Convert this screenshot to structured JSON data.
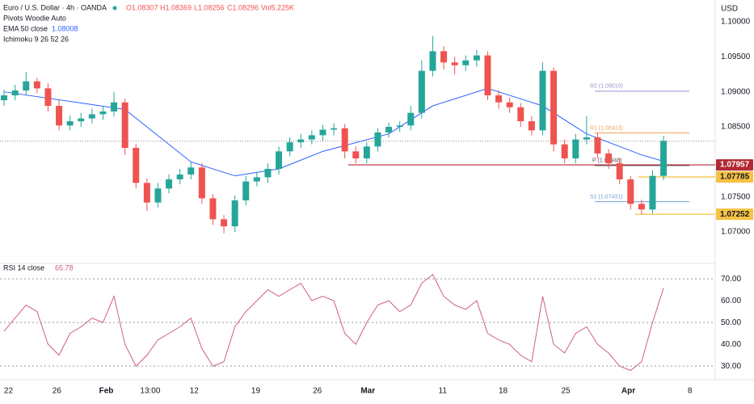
{
  "header": {
    "symbol": "Euro / U.S. Dollar · 4h · OANDA",
    "ohlcv": [
      "O1.08307",
      "H1.08369",
      "L1.08256",
      "C1.08296",
      "Vol5.225K"
    ],
    "pivots_label": "Pivots Woodie Auto",
    "ichimoku_label": "Ichimoku 9 26 52 26",
    "currency": "USD"
  },
  "chart_data": [
    {
      "type": "candlestick",
      "up_color": "#26a69a",
      "down_color": "#ef5350",
      "open": [
        1.0888,
        1.0895,
        1.0902,
        1.0915,
        1.0905,
        1.088,
        1.0852,
        1.0858,
        1.0862,
        1.0868,
        1.0872,
        1.0885,
        1.082,
        1.077,
        1.0742,
        1.0762,
        1.0775,
        1.0782,
        1.0792,
        1.0748,
        1.0718,
        1.0708,
        1.0745,
        1.0772,
        1.0778,
        1.079,
        1.0815,
        1.0828,
        1.0832,
        1.0838,
        1.0846,
        1.0848,
        1.0815,
        1.0805,
        1.0822,
        1.0842,
        1.085,
        1.0852,
        1.087,
        1.093,
        1.0958,
        1.0942,
        1.0938,
        1.0945,
        1.0952,
        1.0895,
        1.0885,
        1.0878,
        1.0858,
        1.0845,
        1.093,
        1.0825,
        1.0805,
        1.0832,
        1.0835,
        1.0812,
        1.0798,
        1.0775,
        1.074,
        1.0732,
        1.078
      ],
      "high": [
        1.0903,
        1.091,
        1.0928,
        1.092,
        1.0912,
        1.0888,
        1.0866,
        1.087,
        1.0876,
        1.088,
        1.09,
        1.089,
        1.0826,
        1.0776,
        1.077,
        1.0782,
        1.079,
        1.08,
        1.0798,
        1.0754,
        1.0724,
        1.0752,
        1.078,
        1.0786,
        1.0798,
        1.0822,
        1.0835,
        1.084,
        1.0845,
        1.0853,
        1.0855,
        1.0854,
        1.0822,
        1.0828,
        1.0848,
        1.0856,
        1.0858,
        1.088,
        1.0945,
        1.098,
        1.0965,
        1.095,
        1.0952,
        1.096,
        1.0958,
        1.0902,
        1.0892,
        1.0884,
        1.0865,
        1.0942,
        1.0935,
        1.0832,
        1.084,
        1.0865,
        1.0842,
        1.0818,
        1.0805,
        1.078,
        1.0746,
        1.0788,
        1.0837
      ],
      "low": [
        1.088,
        1.0888,
        1.0895,
        1.0898,
        1.0872,
        1.0845,
        1.0845,
        1.085,
        1.0855,
        1.086,
        1.0865,
        1.081,
        1.0762,
        1.073,
        1.0735,
        1.0755,
        1.0768,
        1.0775,
        1.074,
        1.071,
        1.0698,
        1.07,
        1.0738,
        1.0765,
        1.077,
        1.0782,
        1.0808,
        1.082,
        1.0825,
        1.083,
        1.0838,
        1.0805,
        1.0798,
        1.0798,
        1.0815,
        1.0835,
        1.0843,
        1.0845,
        1.0862,
        1.0922,
        1.0932,
        1.0925,
        1.093,
        1.0936,
        1.0888,
        1.0876,
        1.087,
        1.085,
        1.0838,
        1.0838,
        1.0815,
        1.0798,
        1.0798,
        1.0825,
        1.0805,
        1.079,
        1.0768,
        1.0732,
        1.0725,
        1.0726,
        1.0774
      ],
      "close": [
        1.0895,
        1.0902,
        1.0915,
        1.0905,
        1.088,
        1.0852,
        1.0858,
        1.0862,
        1.0868,
        1.0872,
        1.0885,
        1.082,
        1.077,
        1.0742,
        1.0762,
        1.0775,
        1.0782,
        1.0792,
        1.0748,
        1.0718,
        1.0708,
        1.0745,
        1.0772,
        1.0778,
        1.079,
        1.0815,
        1.0828,
        1.0832,
        1.0838,
        1.0846,
        1.0848,
        1.0815,
        1.0805,
        1.0822,
        1.0842,
        1.085,
        1.0852,
        1.087,
        1.093,
        1.0958,
        1.0942,
        1.0938,
        1.0945,
        1.0952,
        1.0895,
        1.0885,
        1.0878,
        1.0858,
        1.0845,
        1.093,
        1.0825,
        1.0805,
        1.0832,
        1.0835,
        1.0812,
        1.0798,
        1.0775,
        1.074,
        1.0732,
        1.078,
        1.083
      ],
      "ema": {
        "name": "EMA 50 close",
        "color": "#2962ff",
        "x": [
          0,
          11,
          17,
          21,
          25,
          29,
          35,
          39,
          44,
          49,
          53,
          58,
          60
        ],
        "values": [
          1.09,
          1.0875,
          1.08,
          1.078,
          1.079,
          1.0815,
          1.084,
          1.088,
          1.0905,
          1.088,
          1.084,
          1.081,
          1.08008
        ]
      },
      "current_price": 1.08296,
      "levels": [
        {
          "value": 1.07957,
          "color": "#b22833"
        },
        {
          "value": 1.07785,
          "color": "#f5c242"
        },
        {
          "value": 1.07252,
          "color": "#f5c242"
        }
      ],
      "pivots": [
        {
          "label": "R2 (1.09010)",
          "value": 1.0901,
          "color": "#9c8fd0"
        },
        {
          "label": "R1 (1.08413)",
          "value": 1.08413,
          "color": "#f0a35a"
        },
        {
          "label": "P (1.07948)",
          "value": 1.07948,
          "color": "#555555"
        },
        {
          "label": "S1 (1.07431)",
          "value": 1.07431,
          "color": "#6f9fd8"
        }
      ],
      "xlim": [
        -0.37,
        64.7
      ],
      "ylim": [
        1.06596,
        1.10312
      ],
      "yticks": [
        {
          "value": 1.1,
          "label": "1.10000"
        },
        {
          "value": 1.095,
          "label": "1.09500"
        },
        {
          "value": 1.09,
          "label": "1.09000"
        },
        {
          "value": 1.085,
          "label": "1.08500"
        },
        {
          "value": 1.075,
          "label": "1.07500"
        },
        {
          "value": 1.07,
          "label": "1.07000"
        }
      ],
      "xticks": [
        {
          "value": 0.4,
          "label": "22"
        },
        {
          "value": 4.8,
          "label": "26"
        },
        {
          "value": 9.3,
          "label": "Feb"
        },
        {
          "value": 13.3,
          "label": "13:00"
        },
        {
          "value": 17.3,
          "label": "12"
        },
        {
          "value": 22.9,
          "label": "19"
        },
        {
          "value": 28.5,
          "label": "26"
        },
        {
          "value": 33.1,
          "label": "Mar"
        },
        {
          "value": 39.9,
          "label": "11"
        },
        {
          "value": 45.4,
          "label": "18"
        },
        {
          "value": 51.1,
          "label": "25"
        },
        {
          "value": 56.8,
          "label": "Apr"
        },
        {
          "value": 62.4,
          "label": "8"
        }
      ]
    },
    {
      "type": "line",
      "title": "RSI 14 close",
      "color": "#d05c8a",
      "values": [
        46,
        52,
        58,
        55,
        40,
        35,
        45,
        48,
        52,
        50,
        62,
        40,
        30,
        35,
        42,
        45,
        48,
        52,
        38,
        30,
        32,
        48,
        55,
        60,
        65,
        62,
        65,
        68,
        60,
        62,
        60,
        45,
        40,
        50,
        58,
        60,
        55,
        58,
        68,
        72,
        62,
        58,
        56,
        60,
        45,
        42,
        40,
        35,
        32,
        62,
        40,
        36,
        45,
        48,
        40,
        36,
        30,
        28,
        32,
        50,
        65.78
      ],
      "levels": [
        70,
        50,
        30
      ],
      "ylim": [
        25.6,
        75.6
      ],
      "yticks": [
        {
          "value": 70,
          "label": "70.00"
        },
        {
          "value": 60,
          "label": "60.00"
        },
        {
          "value": 50,
          "label": "50.00"
        },
        {
          "value": 40,
          "label": "40.00"
        },
        {
          "value": 30,
          "label": "30.00"
        }
      ]
    }
  ]
}
